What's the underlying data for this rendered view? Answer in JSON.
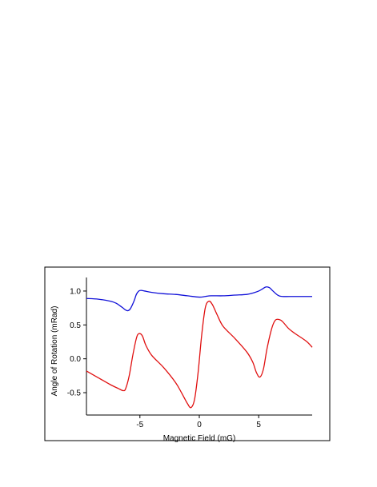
{
  "chart_data": {
    "type": "line",
    "title": "",
    "xlabel": "Magnetic Field (mG)",
    "ylabel": "Angle of Rotation (mRad)",
    "xlim": [
      -9.5,
      9.5
    ],
    "ylim": [
      -0.83,
      1.2
    ],
    "x_ticks": [
      {
        "value": -5,
        "label": "-5"
      },
      {
        "value": 0,
        "label": "0"
      },
      {
        "value": 5,
        "label": "5"
      }
    ],
    "y_ticks": [
      {
        "value": 1.0,
        "label": "1.0"
      },
      {
        "value": 0.5,
        "label": "0.5"
      },
      {
        "value": 0.0,
        "label": "0.0"
      },
      {
        "value": -0.5,
        "label": "-0.5"
      }
    ],
    "grid": false,
    "legend": "none",
    "frame": true,
    "series": [
      {
        "color": "#1010d8",
        "x": [
          -9.5,
          -8.5,
          -7.5,
          -7.0,
          -6.5,
          -6.2,
          -6.0,
          -5.8,
          -5.5,
          -5.3,
          -5.1,
          -4.9,
          -4.6,
          -4.0,
          -3.0,
          -2.0,
          -1.0,
          0.0,
          0.5,
          1.0,
          2.0,
          3.0,
          4.0,
          4.5,
          5.0,
          5.3,
          5.6,
          5.9,
          6.2,
          6.6,
          7.0,
          8.0,
          9.0,
          9.5
        ],
        "y": [
          0.89,
          0.88,
          0.85,
          0.82,
          0.76,
          0.72,
          0.71,
          0.74,
          0.85,
          0.95,
          1.0,
          1.01,
          1.0,
          0.98,
          0.96,
          0.95,
          0.93,
          0.91,
          0.92,
          0.93,
          0.93,
          0.94,
          0.95,
          0.97,
          1.0,
          1.03,
          1.06,
          1.05,
          1.0,
          0.94,
          0.92,
          0.92,
          0.92,
          0.92
        ]
      },
      {
        "color": "#e01010",
        "x": [
          -9.5,
          -8.5,
          -7.5,
          -6.8,
          -6.4,
          -6.2,
          -5.9,
          -5.6,
          -5.3,
          -5.1,
          -4.8,
          -4.5,
          -4.0,
          -3.0,
          -2.0,
          -1.5,
          -1.0,
          -0.7,
          -0.4,
          -0.1,
          0.2,
          0.5,
          0.8,
          1.1,
          1.5,
          2.0,
          3.0,
          4.0,
          4.5,
          4.8,
          5.1,
          5.4,
          5.7,
          6.1,
          6.4,
          6.7,
          7.0,
          7.5,
          8.0,
          9.0,
          9.5
        ],
        "y": [
          -0.18,
          -0.28,
          -0.38,
          -0.44,
          -0.47,
          -0.44,
          -0.25,
          0.05,
          0.3,
          0.37,
          0.34,
          0.2,
          0.05,
          -0.13,
          -0.35,
          -0.5,
          -0.66,
          -0.72,
          -0.6,
          -0.2,
          0.35,
          0.75,
          0.85,
          0.8,
          0.65,
          0.48,
          0.3,
          0.1,
          -0.05,
          -0.2,
          -0.27,
          -0.15,
          0.15,
          0.45,
          0.57,
          0.58,
          0.55,
          0.45,
          0.38,
          0.26,
          0.17
        ]
      }
    ]
  }
}
